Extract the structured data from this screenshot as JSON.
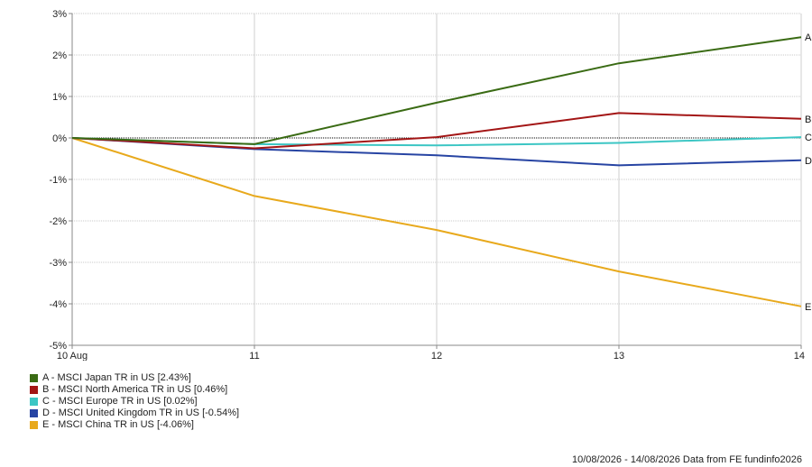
{
  "chart_data": {
    "type": "line",
    "x": [
      "10 Aug",
      "11",
      "12",
      "13",
      "14"
    ],
    "ylim": [
      -5,
      3
    ],
    "yticks": [
      3,
      2,
      1,
      0,
      -1,
      -2,
      -3,
      -4,
      -5
    ],
    "ytick_labels": [
      "3%",
      "2%",
      "1%",
      "0%",
      "-1%",
      "-2%",
      "-3%",
      "-4%",
      "-5%"
    ],
    "grid": true,
    "zero_line": true,
    "series": [
      {
        "key": "A",
        "name": "A - MSCI Japan TR in US [2.43%]",
        "color": "#3a6b14",
        "values": [
          0,
          -0.15,
          0.85,
          1.8,
          2.43
        ]
      },
      {
        "key": "B",
        "name": "B - MSCI North America TR in US [0.46%]",
        "color": "#a31515",
        "values": [
          0,
          -0.25,
          0.02,
          0.6,
          0.46
        ]
      },
      {
        "key": "C",
        "name": "C - MSCI Europe TR in US [0.02%]",
        "color": "#3cc6c4",
        "values": [
          0,
          -0.15,
          -0.18,
          -0.12,
          0.02
        ]
      },
      {
        "key": "D",
        "name": "D - MSCI United Kingdom TR in US [-0.54%]",
        "color": "#2744a3",
        "values": [
          0,
          -0.27,
          -0.42,
          -0.66,
          -0.54
        ]
      },
      {
        "key": "E",
        "name": "E - MSCI China TR in US [-4.06%]",
        "color": "#e8a91c",
        "values": [
          0,
          -1.4,
          -2.22,
          -3.22,
          -4.06
        ]
      }
    ]
  },
  "footer": "10/08/2026 - 14/08/2026 Data from FE fundinfo2026"
}
